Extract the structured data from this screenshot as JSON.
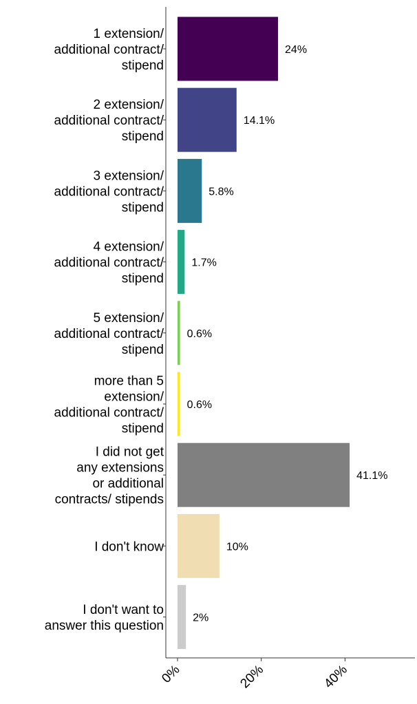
{
  "chart_data": {
    "type": "bar",
    "orientation": "horizontal",
    "categories": [
      [
        "1 extension/",
        "additional contract/",
        "stipend"
      ],
      [
        "2 extension/",
        "additional contract/",
        "stipend"
      ],
      [
        "3 extension/",
        "additional contract/",
        "stipend"
      ],
      [
        "4 extension/",
        "additional contract/",
        "stipend"
      ],
      [
        "5 extension/",
        "additional contract/",
        "stipend"
      ],
      [
        "more than 5",
        "extension/",
        "additional contract/",
        "stipend"
      ],
      [
        "I did not get",
        "any extensions",
        "or additional",
        "contracts/ stipends"
      ],
      [
        "I don't know"
      ],
      [
        "I don't want to",
        "answer this question"
      ]
    ],
    "values": [
      24,
      14.1,
      5.8,
      1.7,
      0.6,
      0.6,
      41.1,
      10,
      2
    ],
    "value_labels": [
      "24%",
      "14.1%",
      "5.8%",
      "1.7%",
      "0.6%",
      "0.6%",
      "41.1%",
      "10%",
      "2%"
    ],
    "colors": [
      "#440154",
      "#414487",
      "#2a788e",
      "#22a884",
      "#7ad151",
      "#fde725",
      "#808080",
      "#f0deb2",
      "#cccccc"
    ],
    "x_ticks": [
      0,
      20,
      40
    ],
    "x_tick_labels": [
      "0%",
      "20%",
      "40%"
    ],
    "xlim": [
      -2.8,
      57
    ],
    "title": "",
    "xlabel": "",
    "ylabel": "",
    "grid": false,
    "legend": "none"
  }
}
